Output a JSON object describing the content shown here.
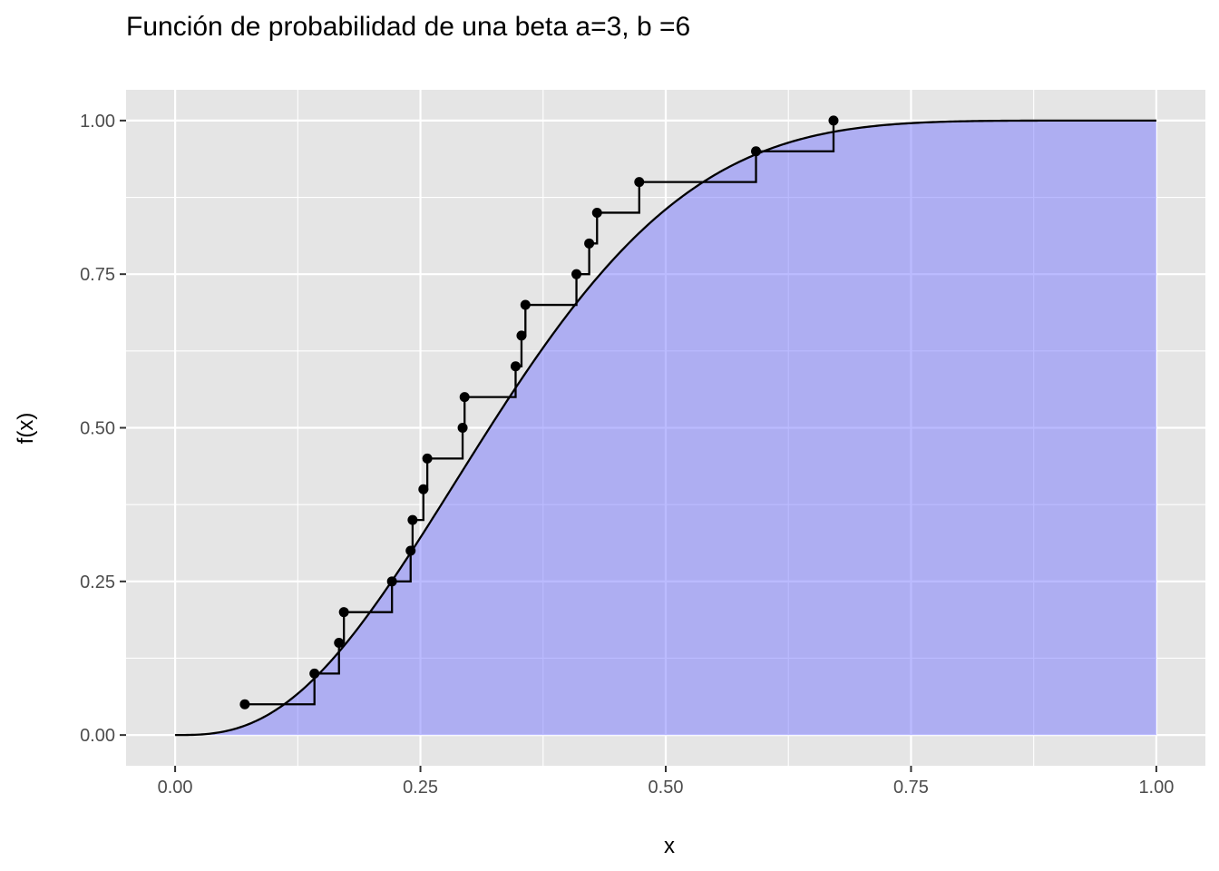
{
  "chart_data": {
    "type": "line",
    "title": "Función de probabilidad de una beta a=3, b =6",
    "xlabel": "x",
    "ylabel": "f(x)",
    "xlim": [
      -0.05,
      1.05
    ],
    "ylim": [
      -0.05,
      1.05
    ],
    "x_ticks": [
      0,
      0.25,
      0.5,
      0.75,
      1
    ],
    "x_tick_labels": [
      "0.00",
      "0.25",
      "0.50",
      "0.75",
      "1.00"
    ],
    "y_ticks": [
      0,
      0.25,
      0.5,
      0.75,
      1
    ],
    "y_tick_labels": [
      "0.00",
      "0.25",
      "0.50",
      "0.75",
      "1.00"
    ],
    "grid": true,
    "panel_background": "#e5e5e5",
    "grid_color": "#ffffff",
    "fill_color": "#7777ff",
    "line_color": "#000000",
    "point_color": "#000000",
    "series": [
      {
        "kind": "area-cdf",
        "distribution": "beta",
        "alpha": 3,
        "beta": 6,
        "x_range": [
          0,
          1
        ]
      },
      {
        "kind": "ecdf-step",
        "x": [
          0.071,
          0.142,
          0.167,
          0.172,
          0.221,
          0.24,
          0.242,
          0.253,
          0.257,
          0.293,
          0.295,
          0.347,
          0.353,
          0.357,
          0.409,
          0.422,
          0.43,
          0.473,
          0.592,
          0.671
        ],
        "y": [
          0.05,
          0.1,
          0.15,
          0.2,
          0.25,
          0.3,
          0.35,
          0.4,
          0.45,
          0.5,
          0.55,
          0.6,
          0.65,
          0.7,
          0.75,
          0.8,
          0.85,
          0.9,
          0.95,
          1.0
        ]
      }
    ]
  }
}
